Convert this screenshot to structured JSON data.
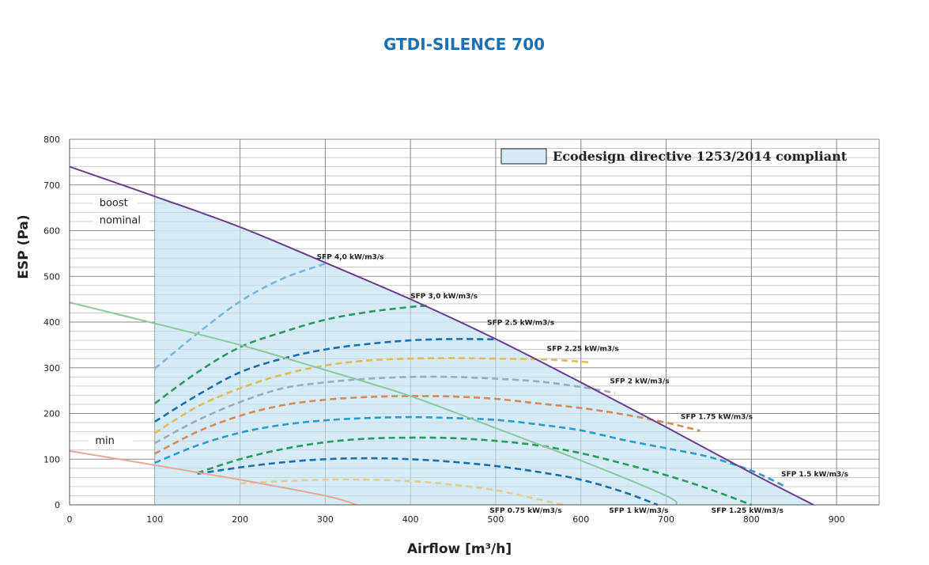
{
  "chart_data": {
    "type": "line",
    "title": "GTDI-SILENCE 700",
    "xlabel": "Airflow [m³/h]",
    "ylabel": "ESP (Pa)",
    "xlim": [
      0,
      950
    ],
    "ylim": [
      0,
      800
    ],
    "x_ticks": [
      0,
      100,
      200,
      300,
      400,
      500,
      600,
      700,
      800,
      900
    ],
    "y_ticks": [
      0,
      100,
      200,
      300,
      400,
      500,
      600,
      700,
      800
    ],
    "grid": true,
    "legend": {
      "label": "Ecodesign directive 1253/2014 compliant",
      "position": "top-right",
      "color": "#d5ebf8"
    },
    "compliance_region": {
      "x_min": 100,
      "color": "#d5ebf8",
      "bounded_by": "boost"
    },
    "fan_curves": [
      {
        "name": "boost",
        "label": "boost",
        "color": "#6b3d8f",
        "points": [
          [
            0,
            740
          ],
          [
            100,
            675
          ],
          [
            200,
            608
          ],
          [
            300,
            530
          ],
          [
            400,
            450
          ],
          [
            500,
            363
          ],
          [
            600,
            268
          ],
          [
            700,
            170
          ],
          [
            800,
            70
          ],
          [
            873,
            0
          ]
        ],
        "label_at": [
          35,
          655
        ]
      },
      {
        "name": "nominal",
        "label": "nominal",
        "color": "#8ec89a",
        "points": [
          [
            0,
            443
          ],
          [
            100,
            397
          ],
          [
            200,
            350
          ],
          [
            300,
            295
          ],
          [
            400,
            238
          ],
          [
            500,
            168
          ],
          [
            600,
            97
          ],
          [
            700,
            20
          ],
          [
            712,
            0
          ]
        ],
        "label_at": [
          35,
          617
        ]
      },
      {
        "name": "min",
        "label": "min",
        "color": "#e8a892",
        "points": [
          [
            0,
            118
          ],
          [
            100,
            87
          ],
          [
            200,
            55
          ],
          [
            300,
            20
          ],
          [
            337,
            0
          ]
        ],
        "label_at": [
          30,
          135
        ]
      }
    ],
    "sfp_curves": [
      {
        "label": "SFP 4,0 kW/m3/s",
        "color": "#7fb6dc",
        "label_at": [
          290,
          538
        ],
        "points": [
          [
            100,
            298
          ],
          [
            150,
            375
          ],
          [
            200,
            445
          ],
          [
            250,
            495
          ],
          [
            300,
            528
          ]
        ]
      },
      {
        "label": "SFP 3,0 kW/m3/s",
        "color": "#2a9a5e",
        "label_at": [
          400,
          452
        ],
        "points": [
          [
            100,
            222
          ],
          [
            150,
            290
          ],
          [
            200,
            345
          ],
          [
            250,
            378
          ],
          [
            300,
            405
          ],
          [
            350,
            422
          ],
          [
            400,
            433
          ],
          [
            420,
            436
          ]
        ]
      },
      {
        "label": "SFP 2.5 kW/m3/s",
        "color": "#1a6fae",
        "label_at": [
          490,
          394
        ],
        "points": [
          [
            100,
            182
          ],
          [
            150,
            240
          ],
          [
            200,
            290
          ],
          [
            250,
            320
          ],
          [
            300,
            340
          ],
          [
            350,
            352
          ],
          [
            400,
            360
          ],
          [
            450,
            363
          ],
          [
            500,
            362
          ]
        ]
      },
      {
        "label": "SFP 2.25 kW/m3/s",
        "color": "#e3bd54",
        "label_at": [
          560,
          337
        ],
        "points": [
          [
            100,
            157
          ],
          [
            150,
            215
          ],
          [
            200,
            255
          ],
          [
            250,
            285
          ],
          [
            300,
            305
          ],
          [
            350,
            316
          ],
          [
            400,
            320
          ],
          [
            450,
            321
          ],
          [
            500,
            320
          ],
          [
            560,
            318
          ],
          [
            610,
            312
          ]
        ]
      },
      {
        "label": "SFP 2 kW/m3/s",
        "color": "#98aec0",
        "label_at": [
          634,
          266
        ],
        "points": [
          [
            100,
            135
          ],
          [
            150,
            185
          ],
          [
            200,
            225
          ],
          [
            250,
            255
          ],
          [
            300,
            268
          ],
          [
            350,
            276
          ],
          [
            400,
            280
          ],
          [
            450,
            280
          ],
          [
            500,
            276
          ],
          [
            550,
            270
          ],
          [
            600,
            258
          ],
          [
            640,
            245
          ]
        ]
      },
      {
        "label": "SFP 1.75 kW/m3/s",
        "color": "#d98a5b",
        "label_at": [
          717,
          188
        ],
        "points": [
          [
            100,
            112
          ],
          [
            150,
            160
          ],
          [
            200,
            195
          ],
          [
            250,
            218
          ],
          [
            300,
            230
          ],
          [
            350,
            236
          ],
          [
            400,
            238
          ],
          [
            450,
            237
          ],
          [
            500,
            232
          ],
          [
            550,
            222
          ],
          [
            600,
            212
          ],
          [
            650,
            198
          ],
          [
            700,
            180
          ],
          [
            740,
            162
          ]
        ]
      },
      {
        "label": "SFP 1.5 kW/m3/s",
        "color": "#2c9ccc",
        "label_at": [
          835,
          62
        ],
        "points": [
          [
            100,
            92
          ],
          [
            150,
            130
          ],
          [
            200,
            158
          ],
          [
            250,
            175
          ],
          [
            300,
            185
          ],
          [
            350,
            190
          ],
          [
            400,
            192
          ],
          [
            450,
            190
          ],
          [
            500,
            186
          ],
          [
            550,
            176
          ],
          [
            600,
            163
          ],
          [
            650,
            142
          ],
          [
            700,
            124
          ],
          [
            750,
            105
          ],
          [
            800,
            75
          ],
          [
            840,
            40
          ]
        ]
      },
      {
        "label": "SFP 1.25 kW/m3/s",
        "color": "#2a9a5e",
        "label_at": [
          753,
          -17
        ],
        "points": [
          [
            150,
            70
          ],
          [
            200,
            100
          ],
          [
            250,
            122
          ],
          [
            300,
            137
          ],
          [
            350,
            145
          ],
          [
            400,
            147
          ],
          [
            450,
            146
          ],
          [
            500,
            140
          ],
          [
            550,
            130
          ],
          [
            600,
            113
          ],
          [
            650,
            90
          ],
          [
            700,
            65
          ],
          [
            750,
            35
          ],
          [
            800,
            0
          ]
        ]
      },
      {
        "label": "SFP 1 kW/m3/s",
        "color": "#1a6fae",
        "label_at": [
          633,
          -17
        ],
        "points": [
          [
            150,
            68
          ],
          [
            200,
            82
          ],
          [
            250,
            93
          ],
          [
            300,
            100
          ],
          [
            350,
            102
          ],
          [
            400,
            100
          ],
          [
            450,
            94
          ],
          [
            500,
            85
          ],
          [
            550,
            72
          ],
          [
            600,
            55
          ],
          [
            650,
            28
          ],
          [
            690,
            0
          ]
        ]
      },
      {
        "label": "SFP 0.75 kW/m3/s",
        "color": "#e3cd94",
        "label_at": [
          493,
          -17
        ],
        "points": [
          [
            200,
            47
          ],
          [
            250,
            52
          ],
          [
            300,
            55
          ],
          [
            350,
            55
          ],
          [
            400,
            52
          ],
          [
            450,
            44
          ],
          [
            500,
            32
          ],
          [
            550,
            12
          ],
          [
            580,
            0
          ]
        ]
      }
    ]
  }
}
